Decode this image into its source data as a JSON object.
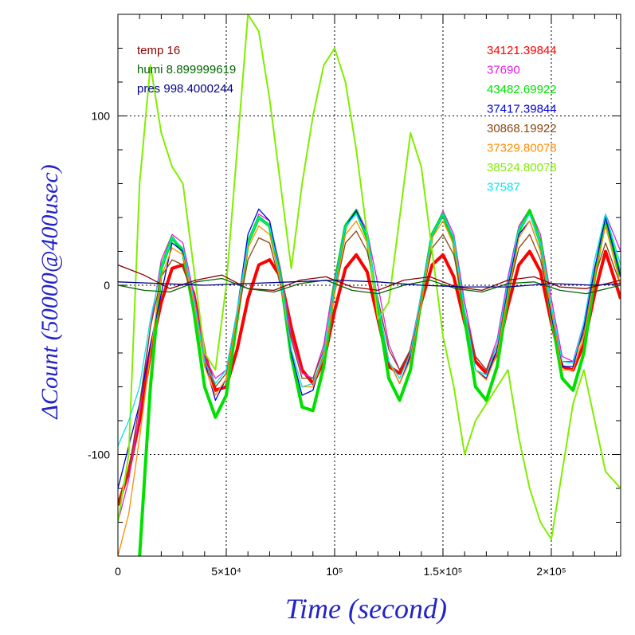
{
  "chart_data": {
    "type": "line",
    "xlabel": "Time (second)",
    "ylabel": "ΔCount (50000@400usec)",
    "xlim": [
      0,
      232000
    ],
    "ylim": [
      -160,
      160
    ],
    "x_ticks": [
      {
        "value": 0,
        "label": "0"
      },
      {
        "value": 50000,
        "label": "5×10⁴"
      },
      {
        "value": 100000,
        "label": "10⁵"
      },
      {
        "value": 150000,
        "label": "1.5×10⁵"
      },
      {
        "value": 200000,
        "label": "2×10⁵"
      }
    ],
    "y_ticks": [
      {
        "value": -100,
        "label": "-100"
      },
      {
        "value": 0,
        "label": "0"
      },
      {
        "value": 100,
        "label": "100"
      }
    ],
    "grid": true,
    "env_legend": [
      {
        "text": "temp 16",
        "color": "#8b0000"
      },
      {
        "text": "humi 8.899999619",
        "color": "#006400"
      },
      {
        "text": "pres 998.4000244",
        "color": "#00008b"
      }
    ],
    "series": [
      {
        "name": "34121.39844",
        "color": "#ff0000",
        "x": [
          0,
          5000,
          10000,
          15000,
          20000,
          25000,
          30000,
          35000,
          40000,
          45000,
          50000,
          55000,
          60000,
          65000,
          70000,
          75000,
          80000,
          85000,
          90000,
          95000,
          100000,
          105000,
          110000,
          115000,
          120000,
          125000,
          130000,
          135000,
          140000,
          145000,
          150000,
          155000,
          160000,
          165000,
          170000,
          175000,
          180000,
          185000,
          190000,
          195000,
          200000,
          205000,
          210000,
          215000,
          220000,
          225000,
          232000
        ],
        "y": [
          -130,
          -110,
          -80,
          -40,
          -10,
          10,
          12,
          -5,
          -40,
          -62,
          -60,
          -38,
          -8,
          12,
          15,
          5,
          -25,
          -50,
          -58,
          -45,
          -15,
          10,
          18,
          8,
          -20,
          -48,
          -52,
          -40,
          -10,
          12,
          18,
          5,
          -22,
          -45,
          -52,
          -40,
          -12,
          12,
          20,
          8,
          -22,
          -48,
          -50,
          -35,
          -5,
          20,
          -8
        ]
      },
      {
        "name": "37690",
        "color": "#e020e0",
        "x": [
          0,
          5000,
          10000,
          15000,
          20000,
          25000,
          30000,
          35000,
          40000,
          45000,
          50000,
          55000,
          60000,
          65000,
          70000,
          75000,
          80000,
          85000,
          90000,
          95000,
          100000,
          105000,
          110000,
          115000,
          120000,
          125000,
          130000,
          135000,
          140000,
          145000,
          150000,
          155000,
          160000,
          165000,
          170000,
          175000,
          180000,
          185000,
          190000,
          195000,
          200000,
          205000,
          210000,
          215000,
          220000,
          225000,
          232000
        ],
        "y": [
          -140,
          -115,
          -75,
          -25,
          15,
          30,
          25,
          -5,
          -42,
          -55,
          -50,
          -15,
          25,
          42,
          38,
          10,
          -30,
          -52,
          -55,
          -35,
          5,
          35,
          45,
          32,
          0,
          -35,
          -50,
          -38,
          -5,
          30,
          44,
          30,
          -10,
          -42,
          -50,
          -32,
          5,
          35,
          45,
          30,
          -8,
          -42,
          -45,
          -22,
          15,
          42,
          20
        ]
      },
      {
        "name": "43482.69922",
        "color": "#00e000",
        "x": [
          0,
          5000,
          10000,
          15000,
          20000,
          25000,
          30000,
          35000,
          40000,
          45000,
          50000,
          55000,
          60000,
          65000,
          70000,
          75000,
          80000,
          85000,
          90000,
          95000,
          100000,
          105000,
          110000,
          115000,
          120000,
          125000,
          130000,
          135000,
          140000,
          145000,
          150000,
          155000,
          160000,
          165000,
          170000,
          175000,
          180000,
          185000,
          190000,
          195000,
          200000,
          205000,
          210000,
          215000,
          220000,
          225000,
          232000
        ],
        "y": [
          -160,
          -200,
          -160,
          -60,
          10,
          28,
          20,
          -15,
          -60,
          -78,
          -65,
          -20,
          25,
          40,
          35,
          5,
          -42,
          -72,
          -74,
          -48,
          0,
          35,
          44,
          28,
          -15,
          -55,
          -68,
          -50,
          -8,
          30,
          42,
          25,
          -20,
          -60,
          -68,
          -48,
          -5,
          32,
          44,
          25,
          -18,
          -55,
          -62,
          -40,
          5,
          40,
          5
        ]
      },
      {
        "name": "37417.39844",
        "color": "#0000e0",
        "x": [
          0,
          5000,
          10000,
          15000,
          20000,
          25000,
          30000,
          35000,
          40000,
          45000,
          50000,
          55000,
          60000,
          65000,
          70000,
          75000,
          80000,
          85000,
          90000,
          95000,
          100000,
          105000,
          110000,
          115000,
          120000,
          125000,
          130000,
          135000,
          140000,
          145000,
          150000,
          155000,
          160000,
          165000,
          170000,
          175000,
          180000,
          185000,
          190000,
          195000,
          200000,
          205000,
          210000,
          215000,
          220000,
          225000,
          232000
        ],
        "y": [
          -120,
          -95,
          -70,
          -35,
          -5,
          25,
          20,
          -10,
          -45,
          -68,
          -55,
          -15,
          30,
          45,
          38,
          5,
          -40,
          -65,
          -62,
          -40,
          0,
          35,
          44,
          30,
          -10,
          -45,
          -58,
          -42,
          -5,
          30,
          42,
          28,
          -15,
          -50,
          -55,
          -38,
          0,
          30,
          38,
          20,
          -18,
          -48,
          -48,
          -25,
          10,
          40,
          5
        ]
      },
      {
        "name": "30868.19922",
        "color": "#8b4513",
        "x": [
          0,
          5000,
          10000,
          15000,
          20000,
          25000,
          30000,
          35000,
          40000,
          45000,
          50000,
          55000,
          60000,
          65000,
          70000,
          75000,
          80000,
          85000,
          90000,
          95000,
          100000,
          105000,
          110000,
          115000,
          120000,
          125000,
          130000,
          135000,
          140000,
          145000,
          150000,
          155000,
          160000,
          165000,
          170000,
          175000,
          180000,
          185000,
          190000,
          195000,
          200000,
          205000,
          210000,
          215000,
          220000,
          225000,
          232000
        ],
        "y": [
          -130,
          -110,
          -70,
          -25,
          5,
          15,
          12,
          -10,
          -45,
          -60,
          -52,
          -20,
          15,
          28,
          25,
          0,
          -32,
          -55,
          -55,
          -38,
          -5,
          25,
          32,
          20,
          -8,
          -38,
          -50,
          -38,
          -8,
          22,
          30,
          18,
          -15,
          -42,
          -50,
          -35,
          -5,
          22,
          30,
          15,
          -15,
          -45,
          -45,
          -28,
          5,
          25,
          0
        ]
      },
      {
        "name": "37329.80078",
        "color": "#ff8c00",
        "x": [
          0,
          5000,
          10000,
          15000,
          20000,
          25000,
          30000,
          35000,
          40000,
          45000,
          50000,
          55000,
          60000,
          65000,
          70000,
          75000,
          80000,
          85000,
          90000,
          95000,
          100000,
          105000,
          110000,
          115000,
          120000,
          125000,
          130000,
          135000,
          140000,
          145000,
          150000,
          155000,
          160000,
          165000,
          170000,
          175000,
          180000,
          185000,
          190000,
          195000,
          200000,
          205000,
          210000,
          215000,
          220000,
          225000,
          232000
        ],
        "y": [
          -160,
          -135,
          -90,
          -40,
          5,
          22,
          18,
          -10,
          -48,
          -65,
          -55,
          -18,
          22,
          35,
          30,
          2,
          -38,
          -60,
          -60,
          -42,
          -5,
          30,
          38,
          25,
          -10,
          -45,
          -58,
          -44,
          -10,
          28,
          38,
          24,
          -15,
          -50,
          -56,
          -40,
          -5,
          28,
          38,
          20,
          -15,
          -50,
          -50,
          -30,
          5,
          35,
          0
        ]
      },
      {
        "name": "38524.80078",
        "color": "#80ee00",
        "x": [
          0,
          5000,
          10000,
          15000,
          20000,
          25000,
          30000,
          35000,
          40000,
          45000,
          50000,
          55000,
          60000,
          65000,
          70000,
          75000,
          80000,
          85000,
          90000,
          95000,
          100000,
          105000,
          110000,
          115000,
          120000,
          125000,
          130000,
          135000,
          140000,
          145000,
          150000,
          155000,
          160000,
          165000,
          170000,
          175000,
          180000,
          185000,
          190000,
          195000,
          200000,
          205000,
          210000,
          215000,
          220000,
          225000,
          232000
        ],
        "y": [
          -140,
          -100,
          60,
          130,
          90,
          70,
          60,
          10,
          -40,
          -50,
          0,
          80,
          160,
          150,
          110,
          60,
          10,
          60,
          100,
          130,
          140,
          120,
          80,
          30,
          -20,
          -10,
          40,
          90,
          70,
          20,
          -30,
          -60,
          -100,
          -80,
          -70,
          -60,
          -50,
          -90,
          -120,
          -140,
          -150,
          -110,
          -70,
          -50,
          -80,
          -110,
          -120
        ]
      },
      {
        "name": "37587",
        "color": "#00e5ee",
        "x": [
          0,
          5000,
          10000,
          15000,
          20000,
          25000,
          30000,
          35000,
          40000,
          45000,
          50000,
          55000,
          60000,
          65000,
          70000,
          75000,
          80000,
          85000,
          90000,
          95000,
          100000,
          105000,
          110000,
          115000,
          120000,
          125000,
          130000,
          135000,
          140000,
          145000,
          150000,
          155000,
          160000,
          165000,
          170000,
          175000,
          180000,
          185000,
          190000,
          195000,
          200000,
          205000,
          210000,
          215000,
          220000,
          225000,
          232000
        ],
        "y": [
          -95,
          -80,
          -60,
          -20,
          10,
          28,
          22,
          -8,
          -45,
          -58,
          -50,
          -15,
          25,
          40,
          35,
          5,
          -38,
          -60,
          -58,
          -40,
          0,
          35,
          42,
          30,
          -10,
          -45,
          -55,
          -40,
          -5,
          30,
          42,
          28,
          -15,
          -50,
          -53,
          -35,
          2,
          33,
          42,
          25,
          -12,
          -45,
          -46,
          -22,
          15,
          42,
          12
        ]
      },
      {
        "name": "temp 16",
        "color": "#8b0000",
        "x": [
          0,
          12000,
          24000,
          36000,
          48000,
          60000,
          72000,
          84000,
          96000,
          108000,
          120000,
          132000,
          144000,
          156000,
          168000,
          180000,
          192000,
          204000,
          216000,
          232000
        ],
        "y": [
          12,
          6,
          -2,
          3,
          6,
          -2,
          -3,
          3,
          5,
          -1,
          -3,
          3,
          5,
          -1,
          -3,
          3,
          5,
          -1,
          -2,
          3
        ]
      },
      {
        "name": "humi 8.899999619",
        "color": "#006400",
        "x": [
          0,
          12000,
          24000,
          36000,
          48000,
          60000,
          72000,
          84000,
          96000,
          108000,
          120000,
          132000,
          144000,
          156000,
          168000,
          180000,
          192000,
          204000,
          216000,
          232000
        ],
        "y": [
          0,
          -3,
          -4,
          2,
          4,
          -2,
          -4,
          1,
          3,
          -3,
          -5,
          0,
          3,
          -2,
          -4,
          1,
          2,
          -3,
          -5,
          0
        ]
      },
      {
        "name": "pres 998.4000244",
        "color": "#00008b",
        "x": [
          0,
          20000,
          40000,
          60000,
          80000,
          100000,
          120000,
          140000,
          160000,
          180000,
          200000,
          220000,
          232000
        ],
        "y": [
          2,
          1,
          0,
          1,
          2,
          3,
          2,
          0,
          -1,
          -1,
          1,
          0,
          1
        ]
      }
    ]
  }
}
